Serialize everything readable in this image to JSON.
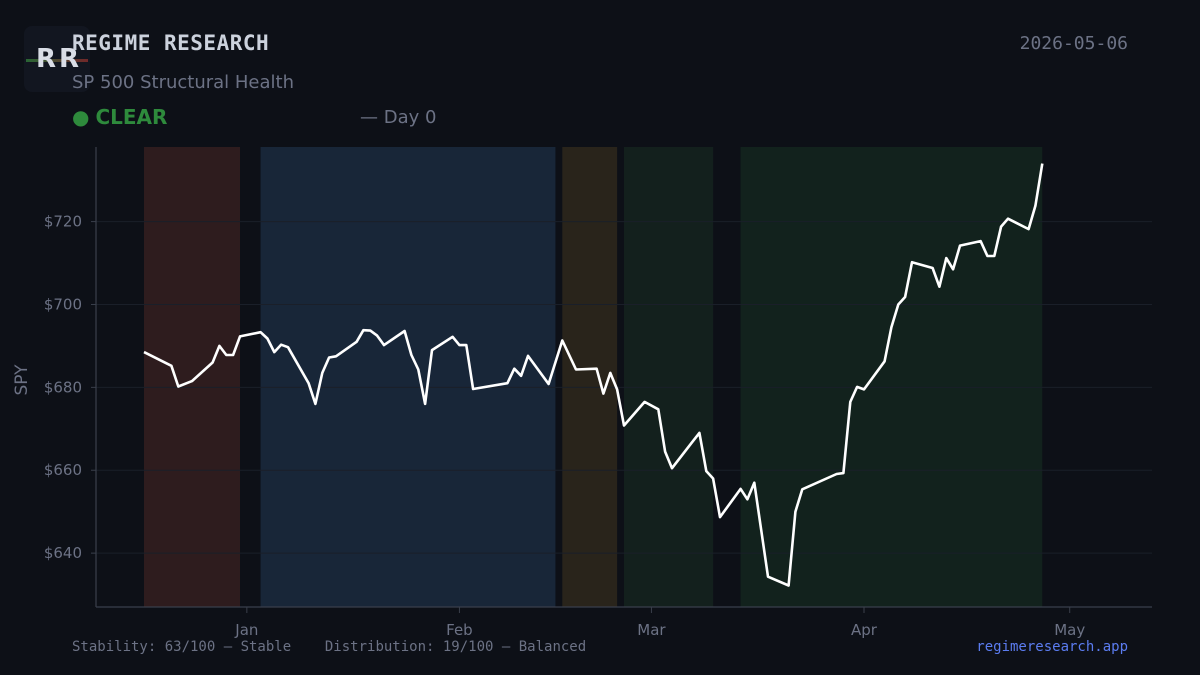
{
  "header": {
    "logo_text": "RR",
    "brand": "REGIME RESEARCH",
    "subtitle": "SP 500 Structural Health",
    "date": "2026-05-06",
    "status_label": "CLEAR",
    "status_color": "#2e8a3c",
    "day_text": "— Day 0"
  },
  "footer": {
    "stability": "Stability: 63/100 — Stable",
    "distribution": "Distribution: 19/100 — Balanced",
    "site": "regimeresearch.app"
  },
  "chart_data": {
    "type": "line",
    "ylabel": "SPY",
    "y_tick_format": "$",
    "ylim": [
      627,
      738
    ],
    "y_ticks": [
      640,
      660,
      680,
      700,
      720
    ],
    "x_range": [
      "2025-12-10",
      "2026-05-13"
    ],
    "x_ticks": [
      {
        "date": "2026-01-01",
        "label": "Jan"
      },
      {
        "date": "2026-02-01",
        "label": "Feb"
      },
      {
        "date": "2026-03-01",
        "label": "Mar"
      },
      {
        "date": "2026-04-01",
        "label": "Apr"
      },
      {
        "date": "2026-05-01",
        "label": "May"
      }
    ],
    "grid": true,
    "line_color": "#ffffff",
    "regimes": [
      {
        "start": "2025-12-17",
        "end": "2025-12-31",
        "color": "#2e1c1e"
      },
      {
        "start": "2026-01-03",
        "end": "2026-02-15",
        "color": "#182638"
      },
      {
        "start": "2026-02-16",
        "end": "2026-02-24",
        "color": "#29241b"
      },
      {
        "start": "2026-02-25",
        "end": "2026-03-10",
        "color": "#13201d"
      },
      {
        "start": "2026-03-14",
        "end": "2026-04-27",
        "color": "#12221d"
      }
    ],
    "series": [
      {
        "points": [
          [
            "2025-12-17",
            688.5
          ],
          [
            "2025-12-21",
            685.2
          ],
          [
            "2025-12-22",
            680.2
          ],
          [
            "2025-12-24",
            681.5
          ],
          [
            "2025-12-27",
            686.0
          ],
          [
            "2025-12-28",
            690.0
          ],
          [
            "2025-12-29",
            687.8
          ],
          [
            "2025-12-30",
            687.8
          ],
          [
            "2025-12-31",
            692.3
          ],
          [
            "2026-01-03",
            693.3
          ],
          [
            "2026-01-04",
            691.8
          ],
          [
            "2026-01-05",
            688.5
          ],
          [
            "2026-01-06",
            690.3
          ],
          [
            "2026-01-07",
            689.7
          ],
          [
            "2026-01-10",
            681.0
          ],
          [
            "2026-01-11",
            676.0
          ],
          [
            "2026-01-12",
            683.5
          ],
          [
            "2026-01-13",
            687.2
          ],
          [
            "2026-01-14",
            687.5
          ],
          [
            "2026-01-17",
            691.0
          ],
          [
            "2026-01-18",
            693.8
          ],
          [
            "2026-01-19",
            693.7
          ],
          [
            "2026-01-20",
            692.5
          ],
          [
            "2026-01-21",
            690.2
          ],
          [
            "2026-01-24",
            693.6
          ],
          [
            "2026-01-25",
            687.8
          ],
          [
            "2026-01-26",
            684.3
          ],
          [
            "2026-01-27",
            676.0
          ],
          [
            "2026-01-28",
            689.0
          ],
          [
            "2026-01-31",
            692.2
          ],
          [
            "2026-02-01",
            690.2
          ],
          [
            "2026-02-02",
            690.2
          ],
          [
            "2026-02-03",
            679.6
          ],
          [
            "2026-02-08",
            681.0
          ],
          [
            "2026-02-09",
            684.5
          ],
          [
            "2026-02-10",
            682.8
          ],
          [
            "2026-02-11",
            687.6
          ],
          [
            "2026-02-14",
            680.8
          ],
          [
            "2026-02-16",
            691.3
          ],
          [
            "2026-02-18",
            684.3
          ],
          [
            "2026-02-21",
            684.5
          ],
          [
            "2026-02-22",
            678.5
          ],
          [
            "2026-02-23",
            683.5
          ],
          [
            "2026-02-24",
            679.5
          ],
          [
            "2026-02-25",
            670.8
          ],
          [
            "2026-02-28",
            676.5
          ],
          [
            "2026-03-02",
            674.7
          ],
          [
            "2026-03-03",
            664.5
          ],
          [
            "2026-03-04",
            660.5
          ],
          [
            "2026-03-07",
            666.9
          ],
          [
            "2026-03-08",
            669.0
          ],
          [
            "2026-03-09",
            659.8
          ],
          [
            "2026-03-10",
            658.0
          ],
          [
            "2026-03-11",
            648.7
          ],
          [
            "2026-03-14",
            655.5
          ],
          [
            "2026-03-15",
            653.0
          ],
          [
            "2026-03-16",
            657.0
          ],
          [
            "2026-03-18",
            634.3
          ],
          [
            "2026-03-21",
            632.2
          ],
          [
            "2026-03-22",
            650.0
          ],
          [
            "2026-03-23",
            655.4
          ],
          [
            "2026-03-28",
            659.1
          ],
          [
            "2026-03-29",
            659.3
          ],
          [
            "2026-03-30",
            676.5
          ],
          [
            "2026-03-31",
            680.1
          ],
          [
            "2026-04-01",
            679.5
          ],
          [
            "2026-04-04",
            686.3
          ],
          [
            "2026-04-05",
            694.5
          ],
          [
            "2026-04-06",
            700.0
          ],
          [
            "2026-04-07",
            701.8
          ],
          [
            "2026-04-08",
            710.2
          ],
          [
            "2026-04-11",
            708.8
          ],
          [
            "2026-04-12",
            704.3
          ],
          [
            "2026-04-13",
            711.2
          ],
          [
            "2026-04-14",
            708.5
          ],
          [
            "2026-04-15",
            714.2
          ],
          [
            "2026-04-18",
            715.3
          ],
          [
            "2026-04-19",
            711.7
          ],
          [
            "2026-04-20",
            711.7
          ],
          [
            "2026-04-21",
            718.8
          ],
          [
            "2026-04-22",
            720.7
          ],
          [
            "2026-04-25",
            718.2
          ],
          [
            "2026-04-26",
            723.8
          ],
          [
            "2026-04-27",
            734.0
          ]
        ]
      }
    ]
  }
}
